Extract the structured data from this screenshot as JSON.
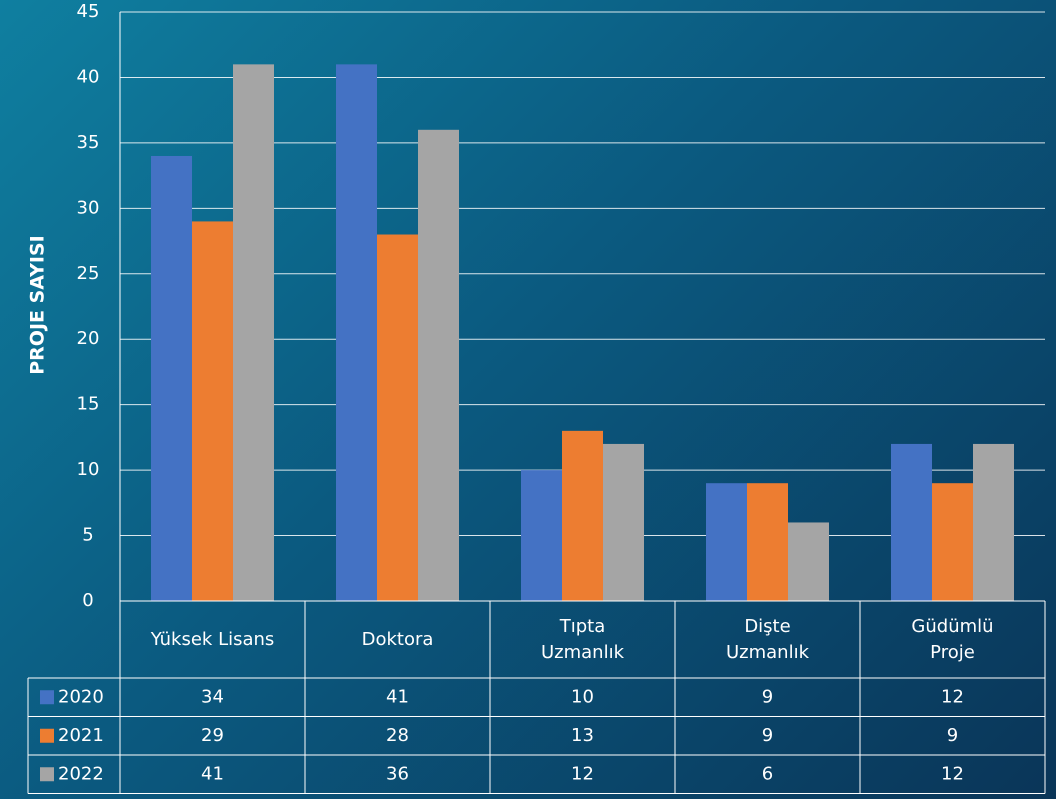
{
  "chart_data": {
    "type": "bar",
    "y_label": "PROJE SAYISI",
    "categories": [
      "Yüksek Lisans",
      "Doktora",
      "Tıpta\nUzmanlık",
      "Dişte\nUzmanlık",
      "Güdümlü\nProje"
    ],
    "series": [
      {
        "name": "2020",
        "color": "#4472c4",
        "values": [
          34,
          41,
          10,
          9,
          12
        ]
      },
      {
        "name": "2021",
        "color": "#ed7d31",
        "values": [
          29,
          28,
          13,
          9,
          9
        ]
      },
      {
        "name": "2022",
        "color": "#a5a5a5",
        "values": [
          41,
          36,
          12,
          6,
          12
        ]
      }
    ],
    "ylim": [
      0,
      45
    ],
    "yticks": [
      0,
      5,
      10,
      15,
      20,
      25,
      30,
      35,
      40,
      45
    ],
    "grid": true,
    "data_table": true
  }
}
